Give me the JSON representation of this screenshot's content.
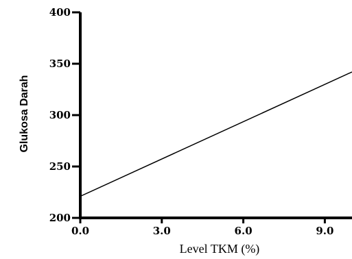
{
  "chart_data": {
    "type": "line",
    "title": "",
    "xlabel": "Level TKM (%)",
    "ylabel": "Glukosa Darah",
    "xlim": [
      0,
      10
    ],
    "ylim": [
      200,
      400
    ],
    "xticks": [
      "0.0",
      "3.0",
      "6.0",
      "9.0"
    ],
    "xtick_values": [
      0,
      3,
      6,
      9
    ],
    "yticks": [
      "200",
      "250",
      "300",
      "350",
      "400"
    ],
    "ytick_values": [
      200,
      250,
      300,
      350,
      400
    ],
    "grid": false,
    "series": [
      {
        "x": [
          0,
          10
        ],
        "y": [
          221,
          342
        ]
      }
    ]
  }
}
